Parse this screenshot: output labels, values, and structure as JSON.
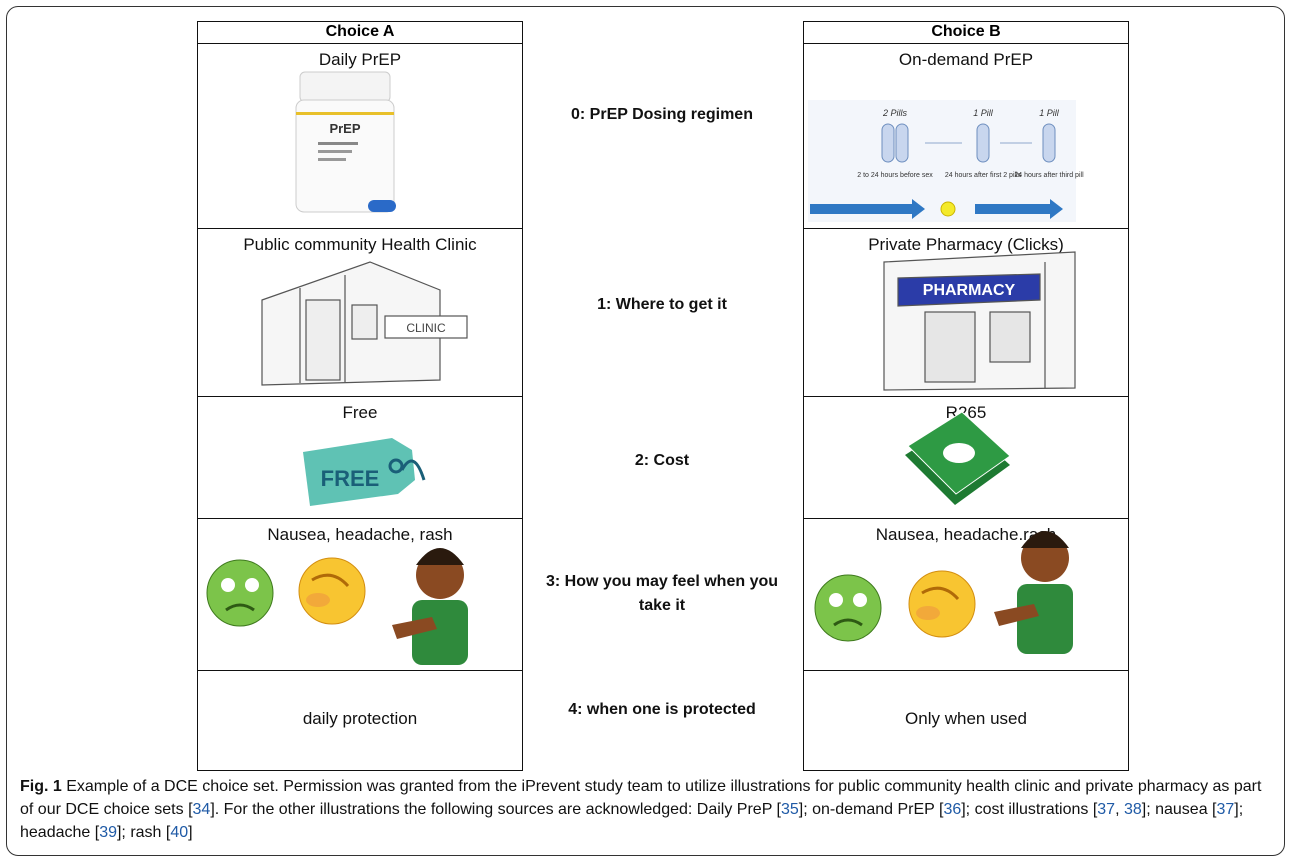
{
  "table": {
    "headers": [
      "Choice A",
      "Choice B"
    ],
    "rows": [
      {
        "attribute": "0: PrEP Dosing regimen",
        "a": "Daily PrEP",
        "b": "On-demand PrEP"
      },
      {
        "attribute": "1: Where to get it",
        "a": "Public community Health Clinic",
        "b": "Private Pharmacy (Clicks)"
      },
      {
        "attribute": "2: Cost",
        "a": "Free",
        "b": "R265"
      },
      {
        "attribute": "3: How you may feel when you take it",
        "a": "Nausea, headache, rash",
        "b": "Nausea, headache.rash"
      },
      {
        "attribute": "4: when one is protected",
        "a": "daily protection",
        "b": "Only when used"
      }
    ]
  },
  "illustrations": {
    "bottle_label": "PrEP",
    "dosing": {
      "doses": [
        "2 Pills",
        "1 Pill",
        "1 Pill"
      ],
      "timing": [
        "2 to 24 hours before sex",
        "24 hours after first 2 pills",
        "24 hours after third pill"
      ]
    },
    "clinic_sign": "CLINIC",
    "pharmacy_sign": "PHARMACY",
    "free_tag": "FREE"
  },
  "caption": {
    "label": "Fig. 1",
    "parts": [
      " Example of a DCE choice set. Permission was granted from the iPrevent study team to utilize illustrations for public community health clinic and private pharmacy as part of our DCE choice sets [",
      "34",
      "]. For the other illustrations the following sources are acknowledged: Daily PreP [",
      "35",
      "]; on-demand PrEP [",
      "36",
      "]; cost illustrations [",
      "37",
      ", ",
      "38",
      "]; nausea [",
      "37",
      "]; headache [",
      "39",
      "]; rash [",
      "40",
      "]"
    ]
  }
}
